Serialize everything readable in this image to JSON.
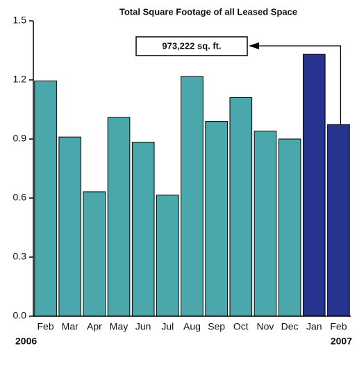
{
  "chart_data": {
    "type": "bar",
    "title": "Total Square Footage of all Leased Space",
    "categories": [
      "Feb",
      "Mar",
      "Apr",
      "May",
      "Jun",
      "Jul",
      "Aug",
      "Sep",
      "Oct",
      "Nov",
      "Dec",
      "Jan",
      "Feb"
    ],
    "values": [
      1.195,
      0.91,
      0.632,
      1.01,
      0.884,
      0.615,
      1.217,
      0.99,
      1.11,
      0.94,
      0.9,
      1.33,
      0.973
    ],
    "colors": [
      "#4aa8ac",
      "#4aa8ac",
      "#4aa8ac",
      "#4aa8ac",
      "#4aa8ac",
      "#4aa8ac",
      "#4aa8ac",
      "#4aa8ac",
      "#4aa8ac",
      "#4aa8ac",
      "#4aa8ac",
      "#27348f",
      "#27348f"
    ],
    "ylim": [
      0,
      1.5
    ],
    "yticks": [
      {
        "value": 0,
        "label": "0.0"
      },
      0.3,
      0.6,
      0.9,
      1.2,
      1.5
    ],
    "year_labels": [
      "2006",
      "2007"
    ],
    "annotation": "973,222 sq. ft."
  }
}
